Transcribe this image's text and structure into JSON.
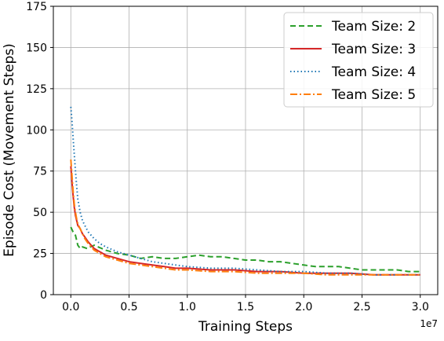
{
  "chart_data": {
    "type": "line",
    "title": "",
    "xlabel": "Training Steps",
    "ylabel": "Episode Cost (Movement Steps)",
    "x_offset_label": "1e7",
    "xlim": [
      -0.15,
      3.15
    ],
    "ylim": [
      0,
      175
    ],
    "x_scale_multiplier": 10000000,
    "x_ticks": [
      0.0,
      0.5,
      1.0,
      1.5,
      2.0,
      2.5,
      3.0
    ],
    "x_tick_labels": [
      "0.0",
      "0.5",
      "1.0",
      "1.5",
      "2.0",
      "2.5",
      "3.0"
    ],
    "y_ticks": [
      0,
      25,
      50,
      75,
      100,
      125,
      150,
      175
    ],
    "y_tick_labels": [
      "0",
      "25",
      "50",
      "75",
      "100",
      "125",
      "150",
      "175"
    ],
    "grid": true,
    "legend_position": "top-right",
    "series": [
      {
        "name": "Team Size: 2",
        "color": "#2ca02c",
        "dash": "dashed",
        "x": [
          0.0,
          0.02,
          0.04,
          0.06,
          0.08,
          0.1,
          0.14,
          0.2,
          0.3,
          0.4,
          0.5,
          0.6,
          0.7,
          0.8,
          0.9,
          1.0,
          1.1,
          1.2,
          1.3,
          1.4,
          1.5,
          1.6,
          1.7,
          1.8,
          1.9,
          2.0,
          2.1,
          2.2,
          2.3,
          2.4,
          2.5,
          2.6,
          2.7,
          2.8,
          2.9,
          3.0
        ],
        "y": [
          41,
          38,
          36,
          30,
          28,
          29,
          28,
          30,
          27,
          25,
          24,
          22,
          23,
          22,
          22,
          23,
          24,
          23,
          23,
          22,
          21,
          21,
          20,
          20,
          19,
          18,
          17,
          17,
          17,
          16,
          15,
          15,
          15,
          15,
          14,
          14
        ]
      },
      {
        "name": "Team Size: 3",
        "color": "#d62728",
        "dash": "solid",
        "x": [
          0.0,
          0.01,
          0.02,
          0.03,
          0.04,
          0.05,
          0.06,
          0.08,
          0.1,
          0.12,
          0.15,
          0.2,
          0.3,
          0.4,
          0.5,
          0.6,
          0.7,
          0.8,
          0.9,
          1.0,
          1.2,
          1.4,
          1.6,
          1.8,
          2.0,
          2.2,
          2.4,
          2.6,
          2.8,
          3.0
        ],
        "y": [
          78,
          68,
          60,
          53,
          48,
          45,
          42,
          40,
          37,
          35,
          32,
          28,
          24,
          22,
          20,
          19,
          18,
          17,
          16,
          16,
          15,
          15,
          14,
          14,
          13,
          13,
          13,
          12,
          12,
          12
        ]
      },
      {
        "name": "Team Size: 4",
        "color": "#1f77b4",
        "dash": "dotted",
        "x": [
          0.0,
          0.01,
          0.02,
          0.03,
          0.04,
          0.05,
          0.06,
          0.08,
          0.1,
          0.12,
          0.15,
          0.2,
          0.25,
          0.3,
          0.4,
          0.5,
          0.6,
          0.7,
          0.8,
          0.9,
          1.0,
          1.2,
          1.4,
          1.6,
          1.8,
          2.0,
          2.2,
          2.4,
          2.6,
          2.8,
          3.0
        ],
        "y": [
          114,
          105,
          95,
          85,
          75,
          66,
          58,
          50,
          45,
          42,
          38,
          34,
          31,
          29,
          26,
          24,
          22,
          20,
          19,
          18,
          17,
          16,
          16,
          15,
          14,
          14,
          13,
          13,
          12,
          12,
          12
        ]
      },
      {
        "name": "Team Size: 5",
        "color": "#ff7f0e",
        "dash": "dashdot",
        "x": [
          0.0,
          0.01,
          0.02,
          0.03,
          0.04,
          0.05,
          0.06,
          0.08,
          0.1,
          0.12,
          0.15,
          0.2,
          0.3,
          0.4,
          0.5,
          0.6,
          0.7,
          0.8,
          0.9,
          1.0,
          1.2,
          1.4,
          1.6,
          1.8,
          2.0,
          2.2,
          2.4,
          2.6,
          2.8,
          3.0
        ],
        "y": [
          82,
          72,
          63,
          55,
          50,
          46,
          43,
          40,
          37,
          34,
          31,
          27,
          23,
          21,
          19,
          18,
          17,
          16,
          15,
          15,
          14,
          14,
          13,
          13,
          13,
          12,
          12,
          12,
          12,
          12
        ]
      }
    ]
  }
}
